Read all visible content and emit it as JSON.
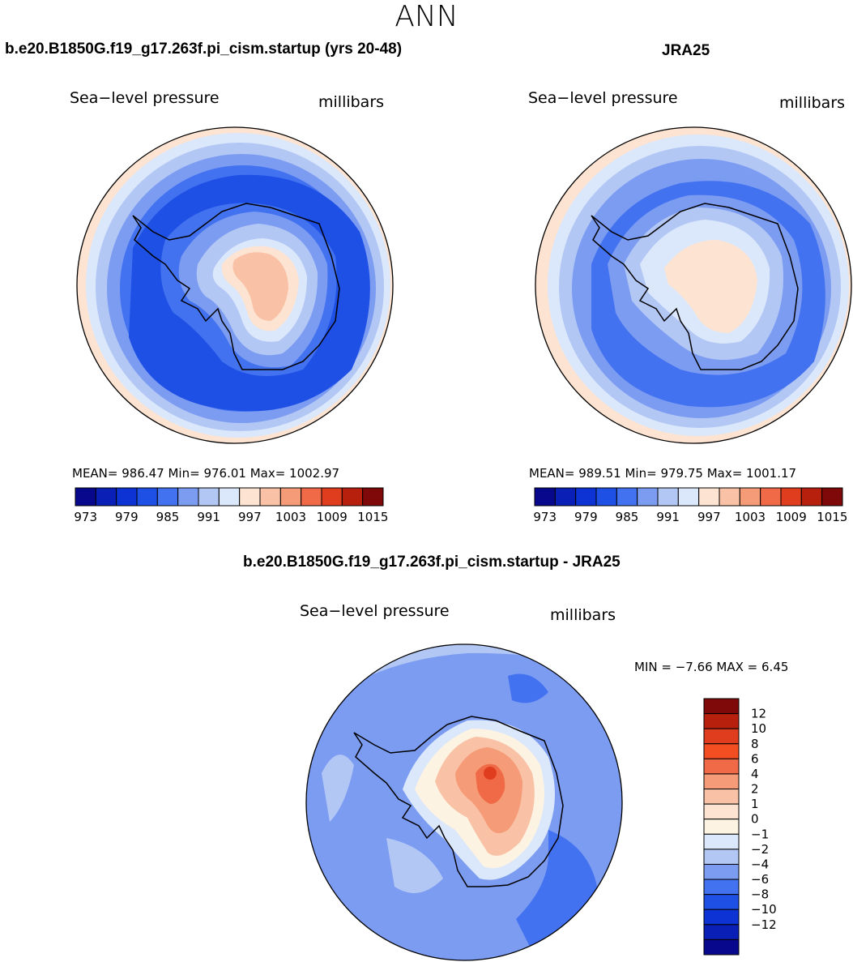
{
  "page": {
    "season": "ANN",
    "left_title": "b.e20.B1850G.f19_g17.263f.pi_cism.startup (yrs 20-48)",
    "right_title": "JRA25",
    "diff_title": "b.e20.B1850G.f19_g17.263f.pi_cism.startup - JRA25"
  },
  "panels": {
    "left": {
      "variable": "Sea−level pressure",
      "units": "millibars",
      "stats": "MEAN= 986.47   Min= 976.01   Max= 1002.97"
    },
    "right": {
      "variable": "Sea−level pressure",
      "units": "millibars",
      "stats": "MEAN= 989.51   Min= 979.75   Max= 1001.17"
    },
    "diff": {
      "variable": "Sea−level pressure",
      "units": "millibars",
      "stats": "MIN =   −7.66  MAX =    6.45"
    }
  },
  "colorbars": {
    "abs": {
      "colors": [
        "#08088c",
        "#0a1fb5",
        "#0d33d4",
        "#1e50e6",
        "#4272f0",
        "#7c9cf2",
        "#b3c7f5",
        "#dbe7fa",
        "#fde4d2",
        "#f9c2a6",
        "#f59b77",
        "#f06a47",
        "#e03d1e",
        "#b8200e",
        "#7f0808"
      ],
      "labels": [
        "973",
        "979",
        "985",
        "991",
        "997",
        "1003",
        "1009",
        "1015"
      ]
    },
    "diff": {
      "colors": [
        "#08088c",
        "#0a1fb5",
        "#0d33d4",
        "#1e50e6",
        "#4272f0",
        "#7c9cf2",
        "#b3c7f5",
        "#dbe7fa",
        "#fdf3e3",
        "#fde4d2",
        "#f9c2a6",
        "#f59b77",
        "#f06a47",
        "#f24e22",
        "#e03d1e",
        "#b8200e",
        "#7f0808"
      ],
      "labels": [
        "12",
        "10",
        "8",
        "6",
        "4",
        "2",
        "1",
        "0",
        "−1",
        "−2",
        "−4",
        "−6",
        "−8",
        "−10",
        "−12"
      ]
    }
  },
  "map_colors": {
    "ocean_ring_outer": "#fde4d2",
    "deep_low": "#1e50e6",
    "mid_low": "#4272f0",
    "light_low": "#7c9cf2",
    "pale_low": "#b3c7f5",
    "near_zero": "#dbe7fa",
    "high_pale": "#fde4d2",
    "high_mid": "#f9c2a6",
    "high_strong": "#f06a47"
  }
}
